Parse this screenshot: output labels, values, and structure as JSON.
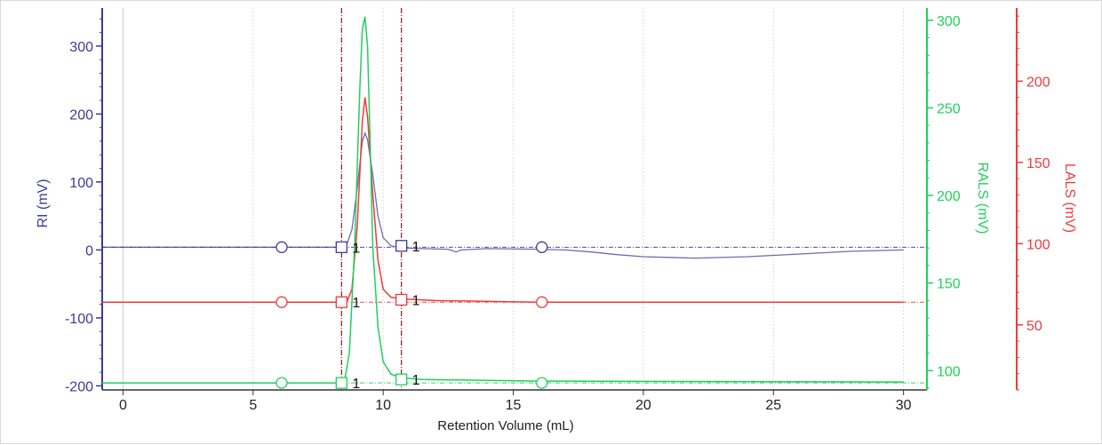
{
  "chart_data": {
    "type": "line",
    "x_axis": {
      "label": "Retention Volume (mL)",
      "range": [
        -0.8,
        30.9
      ],
      "ticks": [
        0,
        5,
        10,
        15,
        20,
        25,
        30
      ],
      "grid": true
    },
    "y_axes": [
      {
        "id": "ri",
        "label": "RI (mV)",
        "side": "left",
        "color": "#3b3b9a",
        "range": [
          -206,
          356
        ],
        "ticks": [
          -200,
          -100,
          0,
          100,
          200,
          300
        ]
      },
      {
        "id": "rals",
        "label": "RALS (mV)",
        "side": "right",
        "color": "#1fd15a",
        "range": [
          89,
          307
        ],
        "ticks": [
          100,
          150,
          200,
          250,
          300
        ]
      },
      {
        "id": "lals",
        "label": "LALS (mV)",
        "side": "right",
        "color": "#ee3b3b",
        "range": [
          10,
          245
        ],
        "ticks": [
          50,
          100,
          150,
          200
        ]
      }
    ],
    "series": [
      {
        "name": "RI (mV)",
        "axis": "ri",
        "color": "#3b3b9a",
        "baseline": 4,
        "points": [
          [
            -0.8,
            4
          ],
          [
            8.4,
            4
          ],
          [
            8.6,
            8
          ],
          [
            8.8,
            30
          ],
          [
            9.0,
            90
          ],
          [
            9.2,
            160
          ],
          [
            9.3,
            172
          ],
          [
            9.4,
            162
          ],
          [
            9.6,
            110
          ],
          [
            9.8,
            50
          ],
          [
            10.0,
            18
          ],
          [
            10.3,
            6
          ],
          [
            10.7,
            3
          ],
          [
            11.5,
            2
          ],
          [
            12.5,
            1
          ],
          [
            12.8,
            -3
          ],
          [
            13.0,
            0
          ],
          [
            14.0,
            2
          ],
          [
            16.0,
            1
          ],
          [
            17.0,
            0
          ],
          [
            18.0,
            -3
          ],
          [
            19.0,
            -7
          ],
          [
            20.0,
            -10
          ],
          [
            22.0,
            -12
          ],
          [
            24.0,
            -10
          ],
          [
            26.0,
            -6
          ],
          [
            28.0,
            -2
          ],
          [
            30.0,
            0
          ]
        ],
        "markers": [
          {
            "x": 6.1,
            "y": 4,
            "shape": "circle"
          },
          {
            "x": 8.4,
            "y": 4,
            "shape": "square",
            "label": "1"
          },
          {
            "x": 10.7,
            "y": 6,
            "shape": "square",
            "label": "1"
          },
          {
            "x": 16.1,
            "y": 4,
            "shape": "circle"
          }
        ]
      },
      {
        "name": "LALS (mV)",
        "axis": "lals",
        "color": "#ee3b3b",
        "baseline": 64,
        "points": [
          [
            -0.8,
            64
          ],
          [
            8.6,
            64
          ],
          [
            8.8,
            72
          ],
          [
            9.0,
            110
          ],
          [
            9.2,
            175
          ],
          [
            9.3,
            190
          ],
          [
            9.4,
            178
          ],
          [
            9.6,
            130
          ],
          [
            9.8,
            90
          ],
          [
            10.0,
            72
          ],
          [
            10.3,
            67
          ],
          [
            10.7,
            66
          ],
          [
            12.0,
            65
          ],
          [
            16.0,
            64
          ],
          [
            30.0,
            64
          ]
        ],
        "markers": [
          {
            "x": 6.1,
            "y": 64,
            "shape": "circle"
          },
          {
            "x": 8.4,
            "y": 64,
            "shape": "square",
            "label": "1"
          },
          {
            "x": 10.7,
            "y": 65.5,
            "shape": "square",
            "label": "1"
          },
          {
            "x": 16.1,
            "y": 64,
            "shape": "circle"
          }
        ]
      },
      {
        "name": "RALS (mV)",
        "axis": "rals",
        "color": "#1fd15a",
        "baseline": 93,
        "points": [
          [
            -0.8,
            93
          ],
          [
            8.5,
            93
          ],
          [
            8.7,
            110
          ],
          [
            8.9,
            170
          ],
          [
            9.1,
            260
          ],
          [
            9.2,
            295
          ],
          [
            9.3,
            302
          ],
          [
            9.4,
            285
          ],
          [
            9.5,
            230
          ],
          [
            9.6,
            170
          ],
          [
            9.8,
            125
          ],
          [
            10.0,
            105
          ],
          [
            10.3,
            98
          ],
          [
            10.7,
            96
          ],
          [
            11.5,
            95
          ],
          [
            16.0,
            94
          ],
          [
            30.0,
            93.5
          ]
        ],
        "markers": [
          {
            "x": 6.1,
            "y": 93,
            "shape": "circle"
          },
          {
            "x": 8.4,
            "y": 93,
            "shape": "square",
            "label": "1"
          },
          {
            "x": 10.7,
            "y": 95,
            "shape": "square",
            "label": "1"
          },
          {
            "x": 16.1,
            "y": 93,
            "shape": "circle"
          }
        ]
      }
    ],
    "vertical_markers": [
      8.4,
      10.7
    ],
    "legend": "none"
  }
}
